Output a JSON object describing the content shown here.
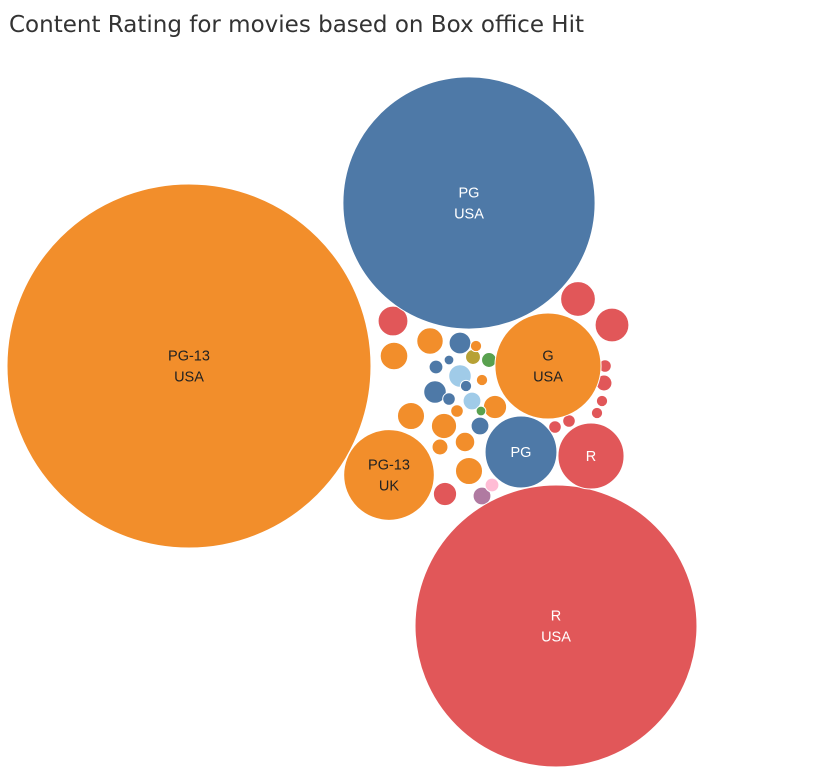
{
  "chart_data": {
    "type": "packed-bubble",
    "title": "Content Rating for movies based on Box office Hit",
    "colors": {
      "PG-13": "#f28e2b",
      "PG": "#4e79a7",
      "R": "#e15759",
      "G": "#f28e2b",
      "other_blue": "#a0cbe8",
      "olive": "#b7a135",
      "green": "#59a14f",
      "purple": "#b07aa1",
      "pink": "#ffbcd5"
    },
    "bubbles": [
      {
        "rating": "PG-13",
        "country": "USA",
        "size": 100,
        "colorKey": "PG-13",
        "text": "#222222"
      },
      {
        "rating": "PG",
        "country": "USA",
        "size": 48,
        "colorKey": "PG",
        "text": "#ffffff"
      },
      {
        "rating": "R",
        "country": "USA",
        "size": 60,
        "colorKey": "R",
        "text": "#ffffff"
      },
      {
        "rating": "G",
        "country": "USA",
        "size": 8.5,
        "colorKey": "G",
        "text": "#222222"
      },
      {
        "rating": "PG-13",
        "country": "UK",
        "size": 6.2,
        "colorKey": "PG-13",
        "text": "#222222"
      },
      {
        "rating": "PG",
        "country": "",
        "size": 3.9,
        "colorKey": "PG",
        "text": "#ffffff"
      },
      {
        "rating": "R",
        "country": "",
        "size": 3.3,
        "colorKey": "R",
        "text": "#ffffff"
      }
    ],
    "small_bubbles": [
      {
        "r": 0.38,
        "colorKey": "R"
      },
      {
        "r": 0.36,
        "colorKey": "R"
      },
      {
        "r": 0.28,
        "colorKey": "R"
      },
      {
        "r": 0.24,
        "colorKey": "PG-13"
      },
      {
        "r": 0.23,
        "colorKey": "PG-13"
      },
      {
        "r": 0.23,
        "colorKey": "PG-13"
      },
      {
        "r": 0.22,
        "colorKey": "PG-13"
      },
      {
        "r": 0.2,
        "colorKey": "PG-13"
      },
      {
        "r": 0.17,
        "colorKey": "PG-13"
      },
      {
        "r": 0.17,
        "colorKey": "R"
      },
      {
        "r": 0.16,
        "colorKey": "PG"
      },
      {
        "r": 0.16,
        "colorKey": "other_blue"
      },
      {
        "r": 0.15,
        "colorKey": "PG"
      },
      {
        "r": 0.12,
        "colorKey": "PG-13"
      },
      {
        "r": 0.1,
        "colorKey": "PG"
      },
      {
        "r": 0.1,
        "colorKey": "other_blue"
      },
      {
        "r": 0.1,
        "colorKey": "purple"
      },
      {
        "r": 0.08,
        "colorKey": "PG-13"
      },
      {
        "r": 0.08,
        "colorKey": "R"
      },
      {
        "r": 0.07,
        "colorKey": "olive"
      },
      {
        "r": 0.07,
        "colorKey": "green"
      },
      {
        "r": 0.06,
        "colorKey": "PG"
      },
      {
        "r": 0.06,
        "colorKey": "pink"
      },
      {
        "r": 0.05,
        "colorKey": "PG-13"
      },
      {
        "r": 0.05,
        "colorKey": "PG"
      },
      {
        "r": 0.05,
        "colorKey": "R"
      },
      {
        "r": 0.05,
        "colorKey": "R"
      },
      {
        "r": 0.05,
        "colorKey": "R"
      },
      {
        "r": 0.04,
        "colorKey": "R"
      },
      {
        "r": 0.04,
        "colorKey": "PG-13"
      },
      {
        "r": 0.04,
        "colorKey": "PG"
      },
      {
        "r": 0.04,
        "colorKey": "PG-13"
      },
      {
        "r": 0.04,
        "colorKey": "R"
      },
      {
        "r": 0.03,
        "colorKey": "PG"
      },
      {
        "r": 0.03,
        "colorKey": "green"
      }
    ]
  }
}
